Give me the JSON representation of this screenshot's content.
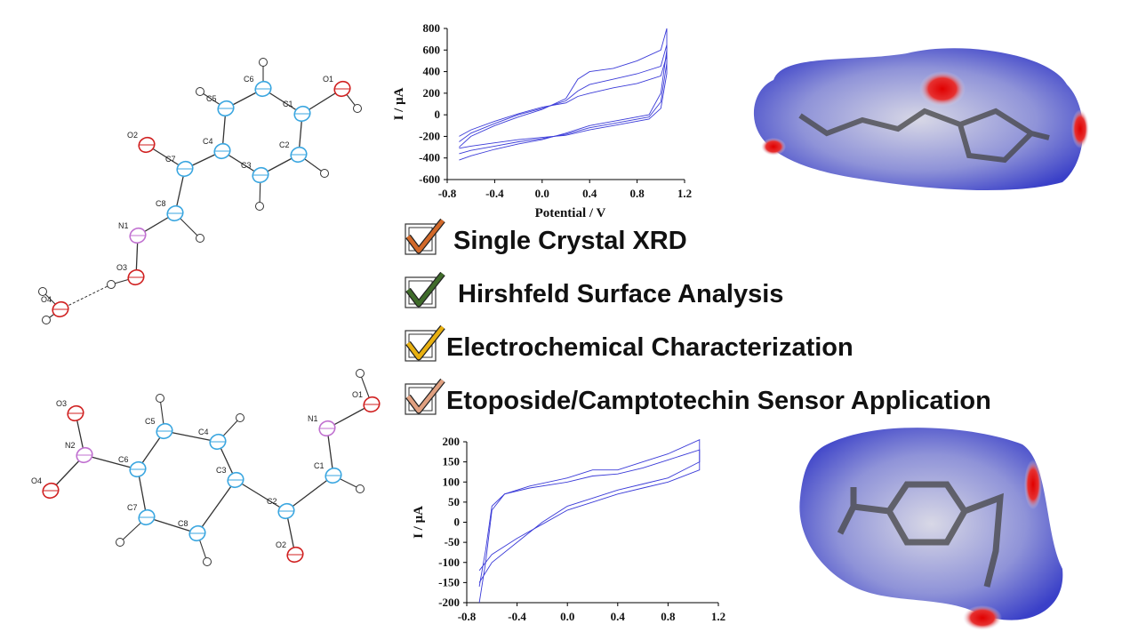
{
  "molecules": [
    {
      "atoms": [
        "C6",
        "C5",
        "C1",
        "O1",
        "C4",
        "C2",
        "C3",
        "C7",
        "O2",
        "C8",
        "N1",
        "O3",
        "O4"
      ]
    },
    {
      "atoms": [
        "O3",
        "N2",
        "O4",
        "C6",
        "C5",
        "C7",
        "C4",
        "C3",
        "C8",
        "C2",
        "O2",
        "C1",
        "N1",
        "O1"
      ]
    }
  ],
  "charts": [
    {
      "type": "line",
      "y_label": "I / μA",
      "x_label": "Potential / V",
      "xlim": [
        -0.8,
        1.2
      ],
      "xticks": [
        -0.8,
        -0.4,
        {
          "value": 0,
          "label": "0.0"
        },
        0.4,
        0.8,
        1.2
      ],
      "ylim": [
        -600,
        800
      ],
      "yticks": [
        -600,
        -400,
        -200,
        0,
        200,
        400,
        600,
        800
      ],
      "series": [
        {
          "color": "#3b3bd8",
          "x": [
            -0.7,
            -0.6,
            -0.4,
            -0.2,
            0,
            0.2,
            0.3,
            0.4,
            0.6,
            0.8,
            1.0,
            1.05,
            1.05,
            1.0,
            0.9,
            0.6,
            0.4,
            0.2,
            0,
            -0.2,
            -0.4,
            -0.6,
            -0.7
          ],
          "values": [
            -300,
            -200,
            -100,
            -20,
            50,
            150,
            330,
            400,
            430,
            500,
            600,
            800,
            600,
            200,
            0,
            -60,
            -100,
            -170,
            -230,
            -270,
            -320,
            -380,
            -420
          ]
        },
        {
          "color": "#3b3bd8",
          "x": [
            -0.7,
            -0.6,
            -0.4,
            -0.2,
            0,
            0.2,
            0.3,
            0.4,
            0.6,
            0.8,
            1.0,
            1.05,
            1.05,
            1.0,
            0.9,
            0.6,
            0.4,
            0.2,
            0,
            -0.2,
            -0.4,
            -0.6,
            -0.7
          ],
          "values": [
            -250,
            -170,
            -80,
            0,
            60,
            130,
            220,
            280,
            330,
            380,
            450,
            650,
            480,
            120,
            -20,
            -80,
            -120,
            -180,
            -220,
            -250,
            -290,
            -330,
            -360
          ]
        },
        {
          "color": "#3b3bd8",
          "x": [
            -0.7,
            -0.6,
            -0.4,
            -0.2,
            0,
            0.2,
            0.3,
            0.4,
            0.6,
            0.8,
            1.0,
            1.05,
            1.05,
            1.0,
            0.9,
            0.6,
            0.4,
            0.2,
            0,
            -0.2,
            -0.4,
            -0.6,
            -0.7
          ],
          "values": [
            -200,
            -140,
            -60,
            10,
            70,
            110,
            170,
            200,
            250,
            290,
            360,
            550,
            380,
            60,
            -40,
            -100,
            -140,
            -190,
            -210,
            -230,
            -260,
            -290,
            -310
          ]
        }
      ]
    },
    {
      "type": "line",
      "y_label": "I / μA",
      "xlim": [
        -0.8,
        1.2
      ],
      "xticks": [
        -0.8,
        -0.4,
        {
          "value": 0,
          "label": "0.0"
        },
        0.4,
        0.8,
        1.2
      ],
      "ylim": [
        -200,
        200
      ],
      "yticks": [
        -200,
        -150,
        -100,
        -50,
        0,
        50,
        100,
        150,
        200
      ],
      "series": [
        {
          "color": "#3b3bd8",
          "x": [
            -0.7,
            -0.65,
            -0.6,
            -0.5,
            -0.3,
            0,
            0.2,
            0.4,
            0.6,
            0.8,
            1.05,
            1.05,
            0.8,
            0.6,
            0.4,
            0.2,
            0,
            -0.2,
            -0.4,
            -0.6,
            -0.7
          ],
          "values": [
            -200,
            -100,
            30,
            70,
            90,
            110,
            130,
            130,
            150,
            170,
            205,
            150,
            110,
            95,
            80,
            60,
            40,
            0,
            -50,
            -100,
            -150
          ]
        },
        {
          "color": "#3b3bd8",
          "x": [
            -0.7,
            -0.65,
            -0.6,
            -0.5,
            -0.3,
            0,
            0.2,
            0.4,
            0.6,
            0.8,
            1.05,
            1.05,
            0.8,
            0.6,
            0.4,
            0.2,
            0,
            -0.2,
            -0.4,
            -0.6,
            -0.7
          ],
          "values": [
            -160,
            -70,
            40,
            70,
            85,
            100,
            115,
            120,
            135,
            155,
            180,
            130,
            100,
            85,
            70,
            50,
            30,
            -5,
            -40,
            -80,
            -120
          ]
        }
      ]
    }
  ],
  "checklist": [
    {
      "text": "Single Crystal XRD",
      "check_color": "#d2692a"
    },
    {
      "text": "Hirshfeld Surface Analysis",
      "check_color": "#3f6b2a"
    },
    {
      "text": "Electrochemical Characterization",
      "check_color": "#e8b010"
    },
    {
      "text": "Etoposide/Camptotechin Sensor Application",
      "check_color": "#e0a080"
    }
  ]
}
